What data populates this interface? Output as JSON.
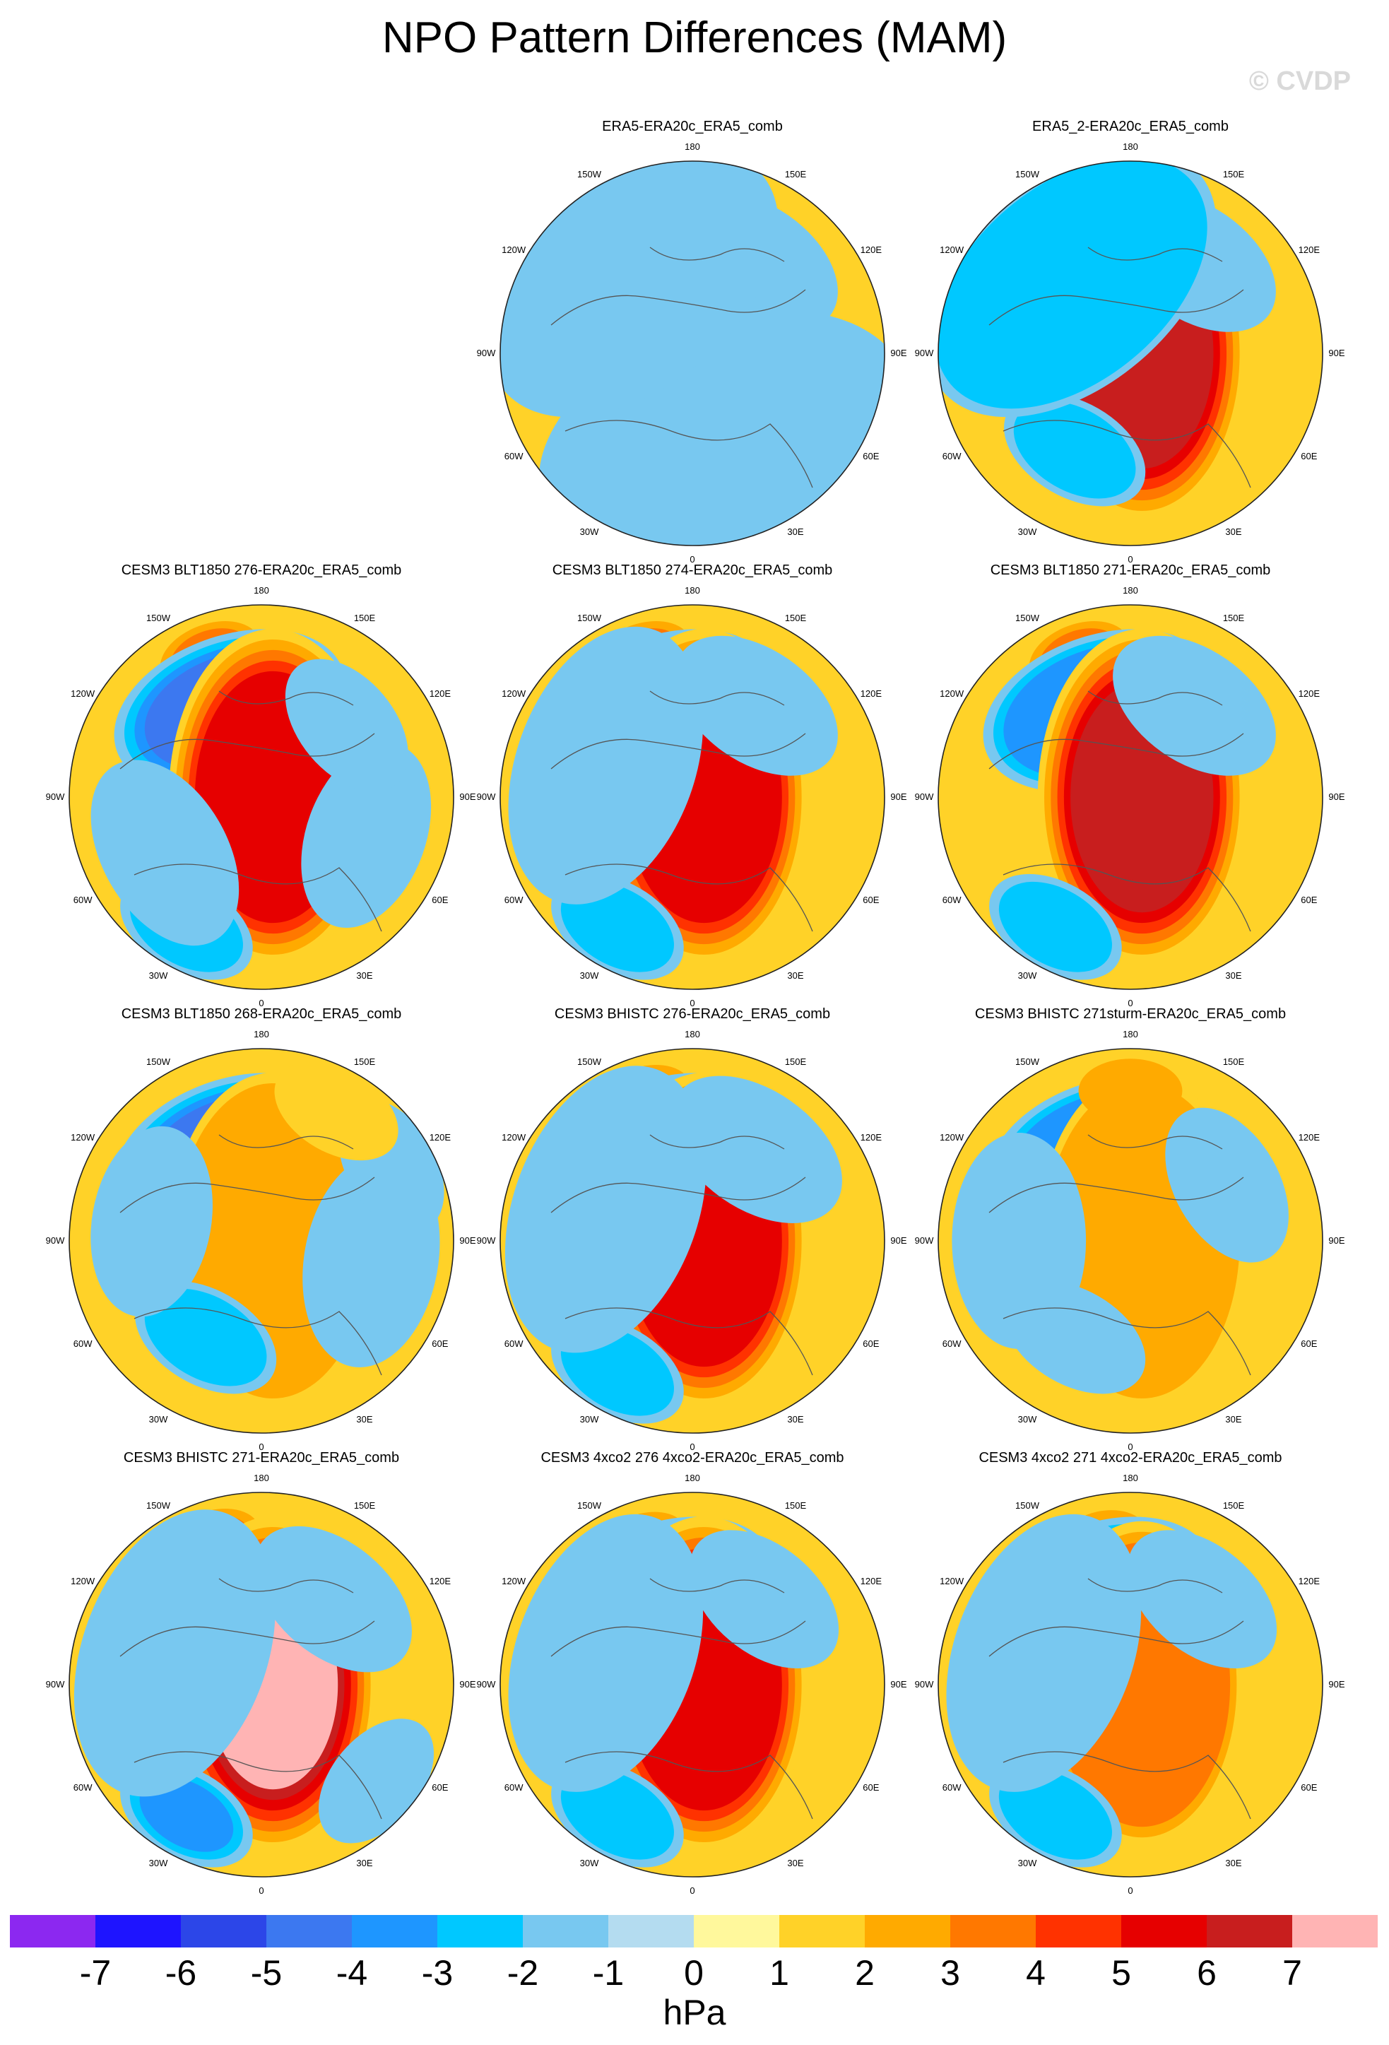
{
  "title": "NPO Pattern Differences (MAM)",
  "watermark": "© CVDP",
  "units": "hPa",
  "longitude_labels": [
    "180",
    "150E",
    "120E",
    "90E",
    "60E",
    "30E",
    "0",
    "30W",
    "60W",
    "90W",
    "120W",
    "150W"
  ],
  "colorbar": {
    "tick_labels": [
      "-7",
      "-6",
      "-5",
      "-4",
      "-3",
      "-2",
      "-1",
      "0",
      "1",
      "2",
      "3",
      "4",
      "5",
      "6",
      "7"
    ],
    "colors": [
      "#8c28f0",
      "#1e14ff",
      "#2c46e8",
      "#3c78f0",
      "#1e96ff",
      "#00c8ff",
      "#78c8f0",
      "#b4dcf0",
      "#fff89c",
      "#ffd228",
      "#ffaa00",
      "#ff7800",
      "#ff3200",
      "#e60000",
      "#c81e1e",
      "#ffb4b4"
    ]
  },
  "panels": [
    {
      "title": "ERA5-ERA20c_ERA5_comb",
      "blobs": [
        [
          200,
          26,
          2
        ],
        [
          200,
          26,
          3
        ],
        [
          90,
          70,
          1
        ],
        [
          90,
          70,
          2
        ],
        [
          90,
          70,
          3
        ],
        [
          90,
          70,
          4
        ],
        [
          90,
          70,
          5
        ],
        [
          310,
          36,
          1
        ],
        [
          20,
          80,
          -1
        ],
        [
          145,
          38,
          -1
        ],
        [
          220,
          70,
          -1
        ]
      ]
    },
    {
      "title": "ERA5_2-ERA20c_ERA5_comb",
      "blobs": [
        [
          200,
          26,
          2
        ],
        [
          200,
          26,
          3
        ],
        [
          90,
          70,
          1
        ],
        [
          90,
          70,
          2
        ],
        [
          90,
          70,
          3
        ],
        [
          90,
          70,
          4
        ],
        [
          90,
          70,
          5
        ],
        [
          90,
          70,
          6
        ],
        [
          330,
          32,
          -1
        ],
        [
          330,
          32,
          -2
        ],
        [
          145,
          38,
          -1
        ],
        [
          220,
          70,
          -1
        ],
        [
          220,
          70,
          -2
        ]
      ]
    },
    {
      "title": "CESM3 BLT1850 276-ERA20c_ERA5_comb",
      "blobs": [
        [
          200,
          26,
          2
        ],
        [
          200,
          26,
          3
        ],
        [
          150,
          30,
          1
        ],
        [
          200,
          50,
          -1
        ],
        [
          200,
          50,
          -2
        ],
        [
          200,
          50,
          -3
        ],
        [
          200,
          50,
          -4
        ],
        [
          90,
          70,
          1
        ],
        [
          90,
          70,
          2
        ],
        [
          90,
          70,
          3
        ],
        [
          90,
          70,
          4
        ],
        [
          90,
          70,
          5
        ],
        [
          330,
          30,
          -1
        ],
        [
          330,
          30,
          -2
        ],
        [
          300,
          42,
          -1
        ],
        [
          70,
          40,
          -1
        ],
        [
          130,
          32,
          -1
        ]
      ]
    },
    {
      "title": "CESM3 BLT1850 274-ERA20c_ERA5_comb",
      "blobs": [
        [
          200,
          26,
          2
        ],
        [
          200,
          26,
          3
        ],
        [
          200,
          50,
          -1
        ],
        [
          200,
          50,
          -2
        ],
        [
          200,
          50,
          -3
        ],
        [
          90,
          70,
          1
        ],
        [
          90,
          70,
          2
        ],
        [
          90,
          70,
          3
        ],
        [
          90,
          70,
          4
        ],
        [
          90,
          70,
          5
        ],
        [
          330,
          30,
          -1
        ],
        [
          330,
          30,
          -2
        ],
        [
          145,
          38,
          -1
        ],
        [
          250,
          60,
          -1
        ]
      ]
    },
    {
      "title": "CESM3 BLT1850 271-ERA20c_ERA5_comb",
      "blobs": [
        [
          200,
          26,
          2
        ],
        [
          200,
          26,
          3
        ],
        [
          200,
          50,
          -1
        ],
        [
          200,
          50,
          -2
        ],
        [
          200,
          50,
          -3
        ],
        [
          90,
          70,
          1
        ],
        [
          90,
          70,
          2
        ],
        [
          90,
          70,
          3
        ],
        [
          90,
          70,
          4
        ],
        [
          90,
          70,
          5
        ],
        [
          90,
          70,
          6
        ],
        [
          330,
          30,
          -1
        ],
        [
          330,
          30,
          -2
        ],
        [
          145,
          38,
          -1
        ]
      ]
    },
    {
      "title": "CESM3 BLT1850 268-ERA20c_ERA5_comb",
      "blobs": [
        [
          200,
          50,
          -1
        ],
        [
          200,
          50,
          -2
        ],
        [
          200,
          50,
          -3
        ],
        [
          200,
          50,
          -4
        ],
        [
          90,
          70,
          1
        ],
        [
          90,
          70,
          2
        ],
        [
          330,
          32,
          -1
        ],
        [
          330,
          32,
          -2
        ],
        [
          80,
          45,
          -1
        ],
        [
          120,
          30,
          -1
        ],
        [
          260,
          40,
          -1
        ],
        [
          150,
          28,
          1
        ]
      ]
    },
    {
      "title": "CESM3 BHISTC 276-ERA20c_ERA5_comb",
      "blobs": [
        [
          200,
          26,
          2
        ],
        [
          200,
          50,
          -1
        ],
        [
          200,
          50,
          -2
        ],
        [
          200,
          50,
          -3
        ],
        [
          200,
          50,
          -4
        ],
        [
          90,
          70,
          1
        ],
        [
          90,
          70,
          2
        ],
        [
          90,
          70,
          3
        ],
        [
          90,
          70,
          4
        ],
        [
          90,
          70,
          5
        ],
        [
          330,
          30,
          -1
        ],
        [
          330,
          30,
          -2
        ],
        [
          145,
          40,
          -1
        ],
        [
          250,
          62,
          -1
        ]
      ]
    },
    {
      "title": "CESM3 BHISTC 271sturm-ERA20c_ERA5_comb",
      "blobs": [
        [
          200,
          48,
          -1
        ],
        [
          200,
          48,
          -2
        ],
        [
          200,
          48,
          -3
        ],
        [
          90,
          70,
          1
        ],
        [
          90,
          70,
          2
        ],
        [
          180,
          26,
          2
        ],
        [
          330,
          32,
          -1
        ],
        [
          120,
          35,
          -1
        ],
        [
          270,
          45,
          -1
        ]
      ]
    },
    {
      "title": "CESM3 BHISTC 271-ERA20c_ERA5_comb",
      "blobs": [
        [
          200,
          26,
          2
        ],
        [
          200,
          26,
          3
        ],
        [
          90,
          70,
          1
        ],
        [
          90,
          70,
          2
        ],
        [
          90,
          70,
          3
        ],
        [
          90,
          70,
          4
        ],
        [
          90,
          70,
          5
        ],
        [
          90,
          70,
          6
        ],
        [
          90,
          70,
          7
        ],
        [
          330,
          30,
          -1
        ],
        [
          330,
          30,
          -2
        ],
        [
          330,
          30,
          -3
        ],
        [
          50,
          30,
          -1
        ],
        [
          140,
          38,
          -1
        ],
        [
          250,
          62,
          -1
        ]
      ]
    },
    {
      "title": "CESM3 4xco2 276 4xco2-ERA20c_ERA5_comb",
      "blobs": [
        [
          200,
          24,
          2
        ],
        [
          200,
          24,
          3
        ],
        [
          200,
          50,
          -1
        ],
        [
          200,
          50,
          -2
        ],
        [
          200,
          50,
          -3
        ],
        [
          90,
          70,
          1
        ],
        [
          90,
          70,
          2
        ],
        [
          90,
          70,
          3
        ],
        [
          90,
          70,
          4
        ],
        [
          90,
          70,
          5
        ],
        [
          330,
          30,
          -1
        ],
        [
          330,
          30,
          -2
        ],
        [
          140,
          36,
          -1
        ],
        [
          250,
          60,
          -1
        ]
      ]
    },
    {
      "title": "CESM3 4xco2 271 4xco2-ERA20c_ERA5_comb",
      "blobs": [
        [
          190,
          22,
          2
        ],
        [
          200,
          50,
          -1
        ],
        [
          200,
          50,
          -2
        ],
        [
          200,
          50,
          -3
        ],
        [
          90,
          68,
          1
        ],
        [
          90,
          68,
          2
        ],
        [
          90,
          68,
          3
        ],
        [
          330,
          30,
          -1
        ],
        [
          330,
          30,
          -2
        ],
        [
          140,
          36,
          -1
        ],
        [
          250,
          60,
          -1
        ]
      ]
    }
  ]
}
